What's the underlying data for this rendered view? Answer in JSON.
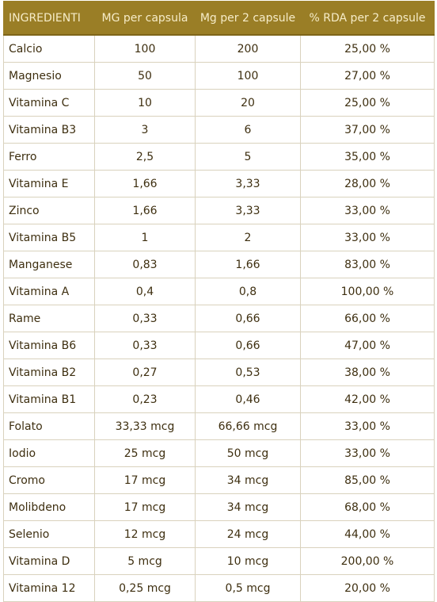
{
  "headers": [
    "INGREDIENTI",
    "MG per capsula",
    "Mg per 2 capsule",
    "% RDA per 2 capsule"
  ],
  "rows": [
    [
      "Calcio",
      "100",
      "200",
      "25,00 %"
    ],
    [
      "Magnesio",
      "50",
      "100",
      "27,00 %"
    ],
    [
      "Vitamina C",
      "10",
      "20",
      "25,00 %"
    ],
    [
      "Vitamina B3",
      "3",
      "6",
      "37,00 %"
    ],
    [
      "Ferro",
      "2,5",
      "5",
      "35,00 %"
    ],
    [
      "Vitamina E",
      "1,66",
      "3,33",
      "28,00 %"
    ],
    [
      "Zinco",
      "1,66",
      "3,33",
      "33,00 %"
    ],
    [
      "Vitamina B5",
      "1",
      "2",
      "33,00 %"
    ],
    [
      "Manganese",
      "0,83",
      "1,66",
      "83,00 %"
    ],
    [
      "Vitamina A",
      "0,4",
      "0,8",
      "100,00 %"
    ],
    [
      "Rame",
      "0,33",
      "0,66",
      "66,00 %"
    ],
    [
      "Vitamina B6",
      "0,33",
      "0,66",
      "47,00 %"
    ],
    [
      "Vitamina B2",
      "0,27",
      "0,53",
      "38,00 %"
    ],
    [
      "Vitamina B1",
      "0,23",
      "0,46",
      "42,00 %"
    ],
    [
      "Folato",
      "33,33 mcg",
      "66,66 mcg",
      "33,00 %"
    ],
    [
      "Iodio",
      "25 mcg",
      "50 mcg",
      "33,00 %"
    ],
    [
      "Cromo",
      "17 mcg",
      "34 mcg",
      "85,00 %"
    ],
    [
      "Molibdeno",
      "17 mcg",
      "34 mcg",
      "68,00 %"
    ],
    [
      "Selenio",
      "12 mcg",
      "24 mcg",
      "44,00 %"
    ],
    [
      "Vitamina D",
      "5 mcg",
      "10 mcg",
      "200,00 %"
    ],
    [
      "Vitamina 12",
      "0,25 mcg",
      "0,5 mcg",
      "20,00 %"
    ]
  ],
  "colors": {
    "header_background": "#9a7e26",
    "header_text": "#f6ecc8",
    "cell_text": "#3e2f10",
    "grid_lines": "#d9d2bd"
  }
}
